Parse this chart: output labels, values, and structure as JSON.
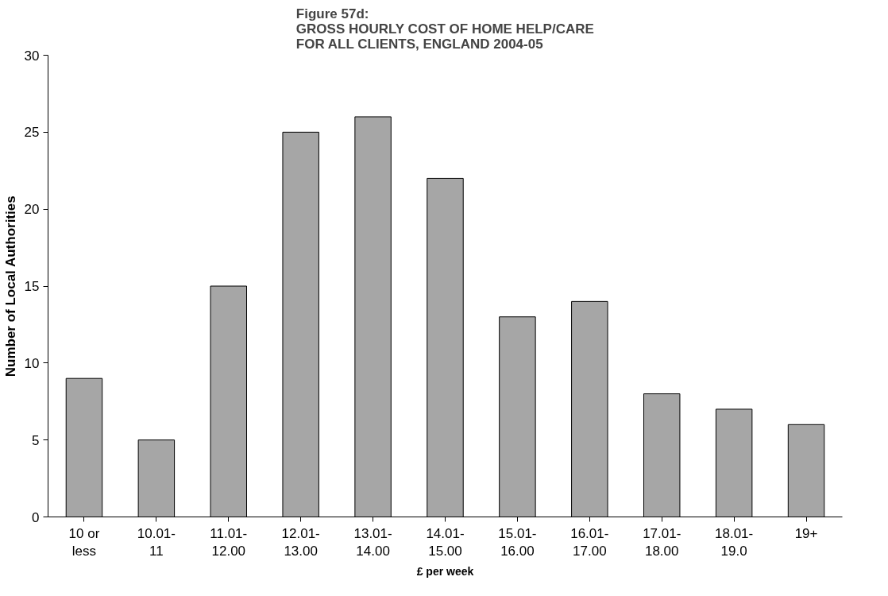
{
  "chart_data": {
    "type": "bar",
    "title": "Figure 57d:\nGROSS HOURLY COST OF HOME HELP/CARE\nFOR ALL CLIENTS, ENGLAND 2004-05",
    "xlabel": "£ per week",
    "ylabel": "Number of Local Authorities",
    "categories": [
      "10 or\nless",
      "10.01-\n11",
      "11.01-\n12.00",
      "12.01-\n13.00",
      "13.01-\n14.00",
      "14.01-\n15.00",
      "15.01-\n16.00",
      "16.01-\n17.00",
      "17.01-\n18.00",
      "18.01-\n19.0",
      "19+"
    ],
    "values": [
      9,
      5,
      15,
      25,
      26,
      22,
      13,
      14,
      8,
      7,
      6
    ],
    "color": "#a6a6a6",
    "ylim": [
      0,
      30
    ],
    "yticks": [
      0,
      5,
      10,
      15,
      20,
      25,
      30
    ],
    "grid": false
  }
}
